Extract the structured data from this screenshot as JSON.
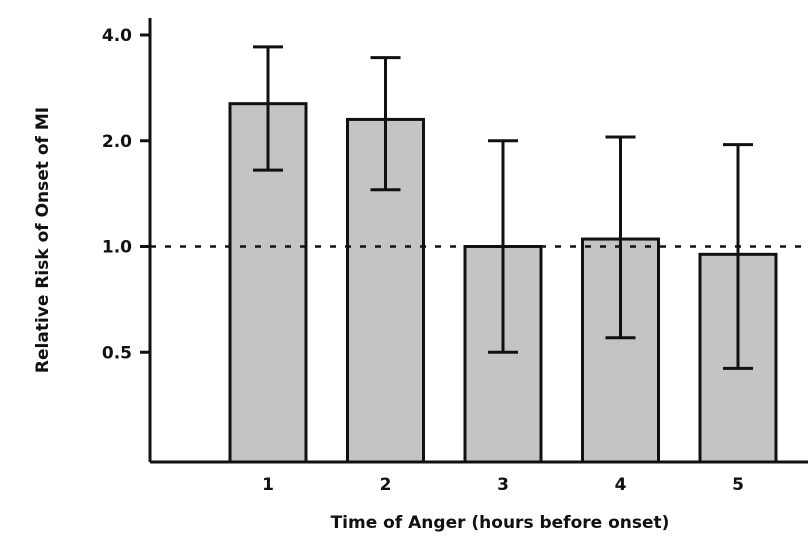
{
  "chart_data": {
    "type": "bar",
    "title": "",
    "xlabel": "Time of Anger (hours before onset)",
    "ylabel": "Relative Risk of Onset of MI",
    "y_scale": "log2",
    "ylim": [
      0.25,
      4.0
    ],
    "y_ticks": [
      0.5,
      1.0,
      2.0,
      4.0
    ],
    "y_tick_labels": [
      "0.5",
      "1.0",
      "2.0",
      "4.0"
    ],
    "categories": [
      "1",
      "2",
      "3",
      "4",
      "5"
    ],
    "values": [
      2.55,
      2.3,
      1.0,
      1.05,
      0.95
    ],
    "error_low": [
      1.65,
      1.45,
      0.5,
      0.55,
      0.45
    ],
    "error_high": [
      3.7,
      3.45,
      2.0,
      2.05,
      1.95
    ],
    "reference_line": 1.0,
    "bar_color": "#c4c4c4",
    "bar_stroke": "#111111",
    "grid": false,
    "legend": "none"
  }
}
